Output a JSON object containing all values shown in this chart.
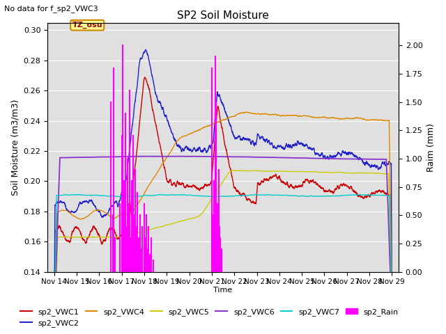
{
  "title": "SP2 Soil Moisture",
  "no_data_text": "No data for f_sp2_VWC3",
  "tz_label": "TZ_osu",
  "ylabel_left": "Soil Moisture (m3/m3)",
  "ylabel_right": "Raim (mm)",
  "xlabel": "Time",
  "ylim_left": [
    0.14,
    0.305
  ],
  "ylim_right": [
    0.0,
    2.2
  ],
  "background_color": "#e0e0e0",
  "fig_color": "#ffffff",
  "x_ticks": [
    "Nov 14",
    "Nov 15",
    "Nov 16",
    "Nov 17",
    "Nov 18",
    "Nov 19",
    "Nov 20",
    "Nov 21",
    "Nov 22",
    "Nov 23",
    "Nov 24",
    "Nov 25",
    "Nov 26",
    "Nov 27",
    "Nov 28",
    "Nov 29"
  ],
  "colors": {
    "VWC1": "#cc0000",
    "VWC2": "#2222cc",
    "VWC4": "#dd8800",
    "VWC5": "#cccc00",
    "VWC6": "#8833cc",
    "VWC7": "#00cccc",
    "Rain": "#ff00ff"
  }
}
